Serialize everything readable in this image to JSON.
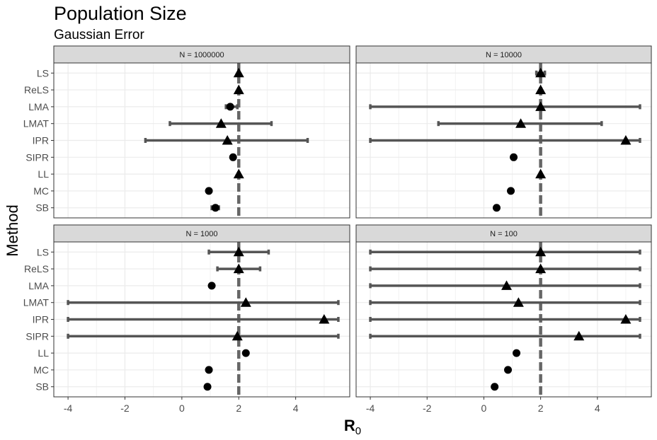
{
  "chart_data": {
    "type": "scatter",
    "title": "Population Size",
    "subtitle": "Gaussian Error",
    "xlabel": "R0",
    "ylabel": "Method",
    "xlim": [
      -4.5,
      5.9
    ],
    "x_ticks": [
      -4,
      -2,
      0,
      2,
      4
    ],
    "methods": [
      "LS",
      "ReLS",
      "LMA",
      "LMAT",
      "IPR",
      "SIPR",
      "LL",
      "MC",
      "SB"
    ],
    "reference_line": 2,
    "grid": true,
    "panels": [
      {
        "name": "N = 1000000",
        "points": [
          {
            "method": "LS",
            "estimate": 2.0,
            "lower": 2.0,
            "upper": 2.0,
            "shape": "triangle"
          },
          {
            "method": "ReLS",
            "estimate": 2.0,
            "lower": 2.0,
            "upper": 2.0,
            "shape": "triangle"
          },
          {
            "method": "LMA",
            "estimate": 1.7,
            "lower": 1.55,
            "upper": 1.95,
            "shape": "circle"
          },
          {
            "method": "LMAT",
            "estimate": 1.38,
            "lower": -0.42,
            "upper": 3.15,
            "shape": "triangle"
          },
          {
            "method": "IPR",
            "estimate": 1.6,
            "lower": -1.28,
            "upper": 4.42,
            "shape": "triangle"
          },
          {
            "method": "SIPR",
            "estimate": 1.8,
            "lower": 1.8,
            "upper": 1.8,
            "shape": "circle"
          },
          {
            "method": "LL",
            "estimate": 2.0,
            "lower": 2.0,
            "upper": 2.0,
            "shape": "triangle"
          },
          {
            "method": "MC",
            "estimate": 0.95,
            "lower": 0.95,
            "upper": 0.95,
            "shape": "circle"
          },
          {
            "method": "SB",
            "estimate": 1.18,
            "lower": 1.05,
            "upper": 1.3,
            "shape": "circle"
          }
        ]
      },
      {
        "name": "N = 10000",
        "points": [
          {
            "method": "LS",
            "estimate": 2.0,
            "lower": 1.85,
            "upper": 2.15,
            "shape": "triangle"
          },
          {
            "method": "ReLS",
            "estimate": 2.0,
            "lower": 2.0,
            "upper": 2.0,
            "shape": "triangle"
          },
          {
            "method": "LMA",
            "estimate": 2.0,
            "lower": -4.0,
            "upper": 5.5,
            "shape": "triangle"
          },
          {
            "method": "LMAT",
            "estimate": 1.3,
            "lower": -1.6,
            "upper": 4.15,
            "shape": "triangle"
          },
          {
            "method": "IPR",
            "estimate": 5.0,
            "lower": -4.0,
            "upper": 5.5,
            "shape": "triangle"
          },
          {
            "method": "SIPR",
            "estimate": 1.05,
            "lower": 1.05,
            "upper": 1.05,
            "shape": "circle"
          },
          {
            "method": "LL",
            "estimate": 2.0,
            "lower": 2.0,
            "upper": 2.0,
            "shape": "triangle"
          },
          {
            "method": "MC",
            "estimate": 0.95,
            "lower": 0.95,
            "upper": 0.95,
            "shape": "circle"
          },
          {
            "method": "SB",
            "estimate": 0.45,
            "lower": 0.45,
            "upper": 0.45,
            "shape": "circle"
          }
        ]
      },
      {
        "name": "N = 1000",
        "points": [
          {
            "method": "LS",
            "estimate": 2.0,
            "lower": 0.95,
            "upper": 3.05,
            "shape": "triangle"
          },
          {
            "method": "ReLS",
            "estimate": 2.0,
            "lower": 1.25,
            "upper": 2.75,
            "shape": "triangle"
          },
          {
            "method": "LMA",
            "estimate": 1.05,
            "lower": 1.05,
            "upper": 1.05,
            "shape": "circle"
          },
          {
            "method": "LMAT",
            "estimate": 2.25,
            "lower": -4.0,
            "upper": 5.5,
            "shape": "triangle"
          },
          {
            "method": "IPR",
            "estimate": 5.0,
            "lower": -4.0,
            "upper": 5.5,
            "shape": "triangle"
          },
          {
            "method": "SIPR",
            "estimate": 1.95,
            "lower": -4.0,
            "upper": 5.5,
            "shape": "triangle"
          },
          {
            "method": "LL",
            "estimate": 2.25,
            "lower": 2.25,
            "upper": 2.25,
            "shape": "circle"
          },
          {
            "method": "MC",
            "estimate": 0.95,
            "lower": 0.95,
            "upper": 0.95,
            "shape": "circle"
          },
          {
            "method": "SB",
            "estimate": 0.9,
            "lower": 0.9,
            "upper": 0.9,
            "shape": "circle"
          }
        ]
      },
      {
        "name": "N = 100",
        "points": [
          {
            "method": "LS",
            "estimate": 2.0,
            "lower": -4.0,
            "upper": 5.5,
            "shape": "triangle"
          },
          {
            "method": "ReLS",
            "estimate": 2.0,
            "lower": -4.0,
            "upper": 5.5,
            "shape": "triangle"
          },
          {
            "method": "LMA",
            "estimate": 0.8,
            "lower": -4.0,
            "upper": 5.5,
            "shape": "triangle"
          },
          {
            "method": "LMAT",
            "estimate": 1.22,
            "lower": -4.0,
            "upper": 5.5,
            "shape": "triangle"
          },
          {
            "method": "IPR",
            "estimate": 5.0,
            "lower": -4.0,
            "upper": 5.5,
            "shape": "triangle"
          },
          {
            "method": "SIPR",
            "estimate": 3.35,
            "lower": -4.0,
            "upper": 5.5,
            "shape": "triangle"
          },
          {
            "method": "LL",
            "estimate": 1.15,
            "lower": 1.15,
            "upper": 1.15,
            "shape": "circle"
          },
          {
            "method": "MC",
            "estimate": 0.85,
            "lower": 0.85,
            "upper": 0.85,
            "shape": "circle"
          },
          {
            "method": "SB",
            "estimate": 0.38,
            "lower": 0.38,
            "upper": 0.38,
            "shape": "circle"
          }
        ]
      }
    ]
  }
}
